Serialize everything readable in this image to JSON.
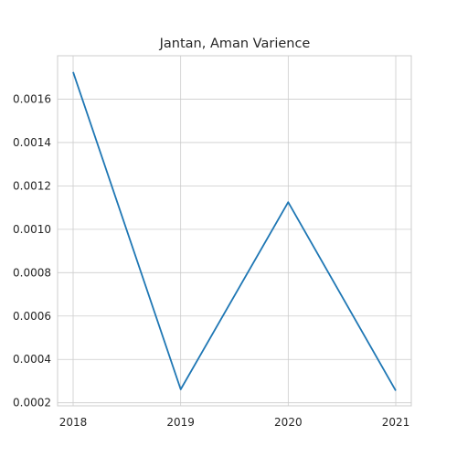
{
  "chart_data": {
    "type": "line",
    "title": "Jantan, Aman Varience",
    "xlabel": "",
    "ylabel": "",
    "x": [
      "2018",
      "2019",
      "2020",
      "2021"
    ],
    "series": [
      {
        "values": [
          0.001725,
          0.000262,
          0.001125,
          0.000256
        ],
        "color": "#1f77b4"
      }
    ],
    "ylim": [
      0.000186,
      0.0018
    ],
    "yticks": [
      0.0002,
      0.0004,
      0.0006,
      0.0008,
      0.001,
      0.0012,
      0.0014,
      0.0016
    ],
    "ytick_labels": [
      "0.0002",
      "0.0004",
      "0.0006",
      "0.0008",
      "0.0010",
      "0.0012",
      "0.0014",
      "0.0016"
    ],
    "grid": true,
    "legend": "none"
  }
}
